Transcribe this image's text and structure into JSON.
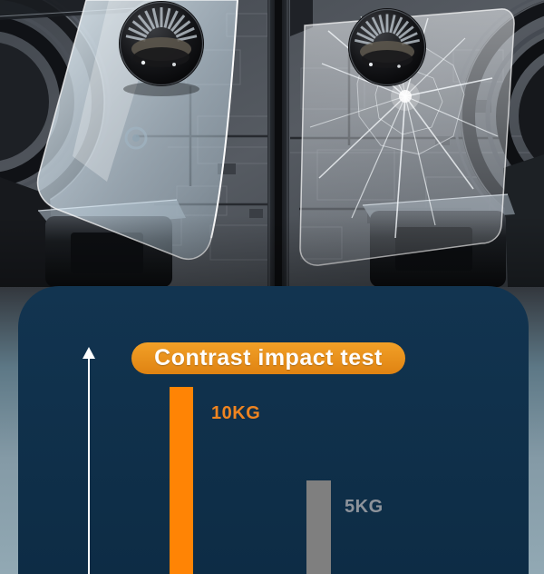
{
  "colors": {
    "panel_bg": "#0e3049",
    "panel_bg_top": "#123450",
    "panel_bg_bottom": "#0d2c45",
    "title_pill_bg": "#e8921f",
    "title_text": "#ffffff",
    "axis_arrow": "#ffffff",
    "page_gradient_bottom": "#92a9b4",
    "photo_base_gray": "#4b5057"
  },
  "chart_data": {
    "type": "bar",
    "title": "Contrast impact test",
    "categories": [
      "10KG",
      "5KG"
    ],
    "values": [
      10,
      5
    ],
    "unit": "KG",
    "data_labels": [
      "10KG",
      "5KG"
    ],
    "xlabel": "",
    "ylabel": "",
    "axis_arrow_direction": "up",
    "legend": false,
    "grid": false,
    "baseline": "cropped-at-image-bottom",
    "series_colors": [
      "#ff8405",
      "#7f7f7f"
    ],
    "label_colors": [
      "#ef8420",
      "#8d939b"
    ]
  }
}
